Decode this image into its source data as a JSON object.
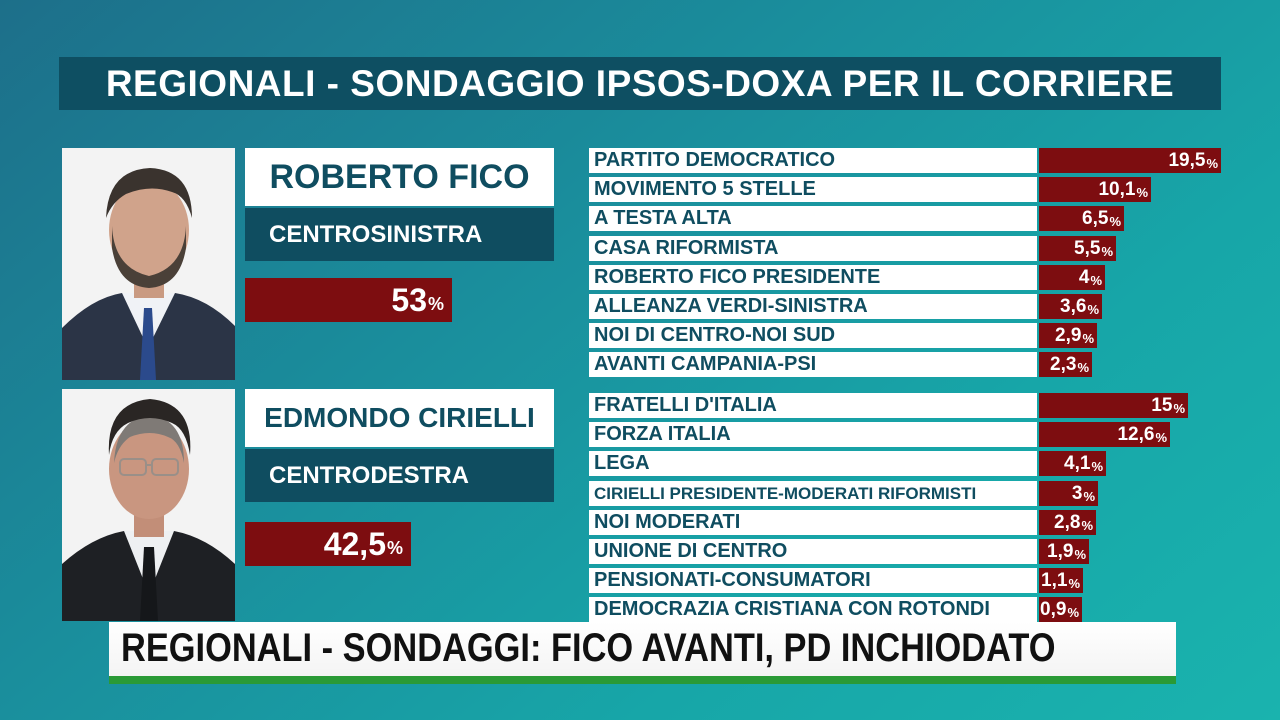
{
  "title": "REGIONALI - SONDAGGIO IPSOS-DOXA PER IL CORRIERE",
  "ticker": "REGIONALI - SONDAGGI: FICO AVANTI, PD INCHIODATO",
  "colors": {
    "header": "#0e4f62",
    "bar": "#7d0d10",
    "ticker_accent": "#2a9a36"
  },
  "chart_data": [
    {
      "type": "bar",
      "candidate": "ROBERTO FICO",
      "coalition": "CENTROSINISTRA",
      "candidate_value": 53,
      "candidate_label": "53",
      "categories": [
        "PARTITO DEMOCRATICO",
        "MOVIMENTO 5 STELLE",
        "A TESTA ALTA",
        "CASA RIFORMISTA",
        "ROBERTO FICO PRESIDENTE",
        "ALLEANZA VERDI-SINISTRA",
        "NOI DI CENTRO-NOI SUD",
        "AVANTI CAMPANIA-PSI"
      ],
      "values": [
        19.5,
        10.1,
        6.5,
        5.5,
        4,
        3.6,
        2.9,
        2.3
      ],
      "value_labels": [
        "19,5",
        "10,1",
        "6,5",
        "5,5",
        "4",
        "3,6",
        "2,9",
        "2,3"
      ],
      "unit": "%"
    },
    {
      "type": "bar",
      "candidate": "EDMONDO CIRIELLI",
      "coalition": "CENTRODESTRA",
      "candidate_value": 42.5,
      "candidate_label": "42,5",
      "categories": [
        "FRATELLI D'ITALIA",
        "FORZA ITALIA",
        "LEGA",
        "CIRIELLI PRESIDENTE-MODERATI RIFORMISTI",
        "NOI MODERATI",
        "UNIONE DI CENTRO",
        "PENSIONATI-CONSUMATORI",
        "DEMOCRAZIA CRISTIANA CON ROTONDI"
      ],
      "values": [
        15,
        12.6,
        4.1,
        3,
        2.8,
        1.9,
        1.1,
        0.9
      ],
      "value_labels": [
        "15",
        "12,6",
        "4,1",
        "3",
        "2,8",
        "1,9",
        "1,1",
        "0,9"
      ],
      "unit": "%"
    }
  ]
}
